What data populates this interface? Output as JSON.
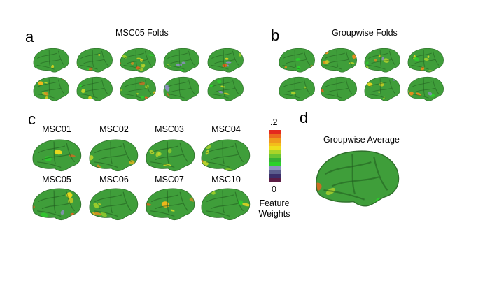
{
  "colors": {
    "cortex_base": "#3f9e3a",
    "colormap": [
      "#5c1d45",
      "#3b2f6a",
      "#5c5f8e",
      "#8c90bf",
      "#2bd12b",
      "#35b034",
      "#68c431",
      "#a8d428",
      "#eedd1c",
      "#f3bd1a",
      "#f09a1c",
      "#ec6a1e",
      "#e42a1e"
    ]
  },
  "panels": {
    "a": {
      "letter": "a",
      "title": "MSC05 Folds"
    },
    "b": {
      "letter": "b",
      "title": "Groupwise Folds"
    },
    "c": {
      "letter": "c",
      "subjects": [
        "MSC01",
        "MSC02",
        "MSC03",
        "MSC04",
        "MSC05",
        "MSC06",
        "MSC07",
        "MSC10"
      ]
    },
    "d": {
      "letter": "d",
      "title": "Groupwise Average"
    }
  },
  "colorbar": {
    "max_label": ".2",
    "min_label": "0",
    "title_line1": "Feature",
    "title_line2": "Weights",
    "range": [
      0,
      0.2
    ]
  }
}
